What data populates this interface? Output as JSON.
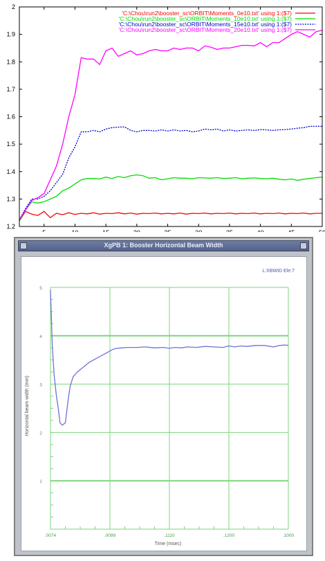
{
  "chart_data": [
    {
      "type": "line",
      "xlim": [
        1,
        50
      ],
      "ylim": [
        1.2,
        2.0
      ],
      "x_ticks": [
        5,
        10,
        15,
        20,
        25,
        30,
        35,
        40,
        45,
        50
      ],
      "y_ticks": [
        1.2,
        1.3,
        1.4,
        1.5,
        1.6,
        1.7,
        1.8,
        1.9,
        2.0
      ],
      "x_tick_labels": [
        "5",
        "10",
        "15",
        "20",
        "25",
        "30",
        "35",
        "40",
        "45",
        "50"
      ],
      "y_tick_labels": [
        "1.2",
        "1.3",
        "1.4",
        "1.5",
        "1.6",
        "1.7",
        "1.8",
        "1.9",
        "2"
      ],
      "legend_position": "top-right",
      "grid": false,
      "series": [
        {
          "name": "'C:\\Chou\\run2\\booster_sc\\ORBIT\\Moments_0e10.txt' using 1:($7)",
          "color": "#ff0000",
          "style": "solid",
          "x": [
            1,
            2,
            3,
            4,
            5,
            6,
            7,
            8,
            9,
            10,
            11,
            12,
            13,
            14,
            15,
            16,
            17,
            18,
            19,
            20,
            21,
            22,
            23,
            24,
            25,
            26,
            27,
            28,
            29,
            30,
            31,
            32,
            33,
            34,
            35,
            36,
            37,
            38,
            39,
            40,
            41,
            42,
            43,
            44,
            45,
            46,
            47,
            48,
            49,
            50
          ],
          "y": [
            1.22,
            1.255,
            1.245,
            1.24,
            1.255,
            1.232,
            1.248,
            1.243,
            1.25,
            1.244,
            1.248,
            1.246,
            1.25,
            1.245,
            1.248,
            1.247,
            1.25,
            1.246,
            1.249,
            1.245,
            1.248,
            1.247,
            1.249,
            1.246,
            1.248,
            1.246,
            1.249,
            1.245,
            1.248,
            1.247,
            1.249,
            1.246,
            1.248,
            1.247,
            1.249,
            1.246,
            1.248,
            1.247,
            1.249,
            1.246,
            1.248,
            1.247,
            1.249,
            1.246,
            1.248,
            1.247,
            1.249,
            1.246,
            1.248,
            1.248
          ]
        },
        {
          "name": "'C:\\Chou\\run2\\booster_sc\\ORBIT\\Moments_10e10.txt' using 1:($7)",
          "color": "#00dd00",
          "style": "solid",
          "x": [
            1,
            2,
            3,
            4,
            5,
            6,
            7,
            8,
            9,
            10,
            11,
            12,
            13,
            14,
            15,
            16,
            17,
            18,
            19,
            20,
            21,
            22,
            23,
            24,
            25,
            26,
            27,
            28,
            29,
            30,
            31,
            32,
            33,
            34,
            35,
            36,
            37,
            38,
            39,
            40,
            41,
            42,
            43,
            44,
            45,
            46,
            47,
            48,
            49,
            50
          ],
          "y": [
            1.22,
            1.26,
            1.29,
            1.285,
            1.29,
            1.3,
            1.31,
            1.33,
            1.34,
            1.355,
            1.37,
            1.375,
            1.375,
            1.373,
            1.38,
            1.375,
            1.382,
            1.378,
            1.385,
            1.388,
            1.385,
            1.376,
            1.378,
            1.37,
            1.374,
            1.378,
            1.376,
            1.376,
            1.374,
            1.378,
            1.377,
            1.376,
            1.378,
            1.375,
            1.376,
            1.378,
            1.374,
            1.376,
            1.377,
            1.375,
            1.374,
            1.376,
            1.372,
            1.37,
            1.373,
            1.368,
            1.372,
            1.375,
            1.378,
            1.38
          ]
        },
        {
          "name": "'C:\\Chou\\run2\\booster_sc\\ORBIT\\Moments_15e10.txt' using 1:($7)",
          "color": "#0000cc",
          "style": "dotted",
          "x": [
            1,
            2,
            3,
            4,
            5,
            6,
            7,
            8,
            9,
            10,
            11,
            12,
            13,
            14,
            15,
            16,
            17,
            18,
            19,
            20,
            21,
            22,
            23,
            24,
            25,
            26,
            27,
            28,
            29,
            30,
            31,
            32,
            33,
            34,
            35,
            36,
            37,
            38,
            39,
            40,
            41,
            42,
            43,
            44,
            45,
            46,
            47,
            48,
            49,
            50
          ],
          "y": [
            1.225,
            1.265,
            1.3,
            1.3,
            1.31,
            1.33,
            1.36,
            1.39,
            1.45,
            1.49,
            1.545,
            1.545,
            1.55,
            1.545,
            1.555,
            1.56,
            1.562,
            1.563,
            1.55,
            1.545,
            1.55,
            1.55,
            1.548,
            1.552,
            1.548,
            1.552,
            1.548,
            1.55,
            1.545,
            1.548,
            1.555,
            1.552,
            1.555,
            1.548,
            1.552,
            1.548,
            1.55,
            1.552,
            1.55,
            1.553,
            1.552,
            1.55,
            1.552,
            1.553,
            1.555,
            1.558,
            1.56,
            1.565,
            1.565,
            1.565
          ]
        },
        {
          "name": "'C:\\Chou\\run2\\booster_sc\\ORBIT\\Moments_20e10.txt' using 1:($7)",
          "color": "#ff00ff",
          "style": "solid",
          "x": [
            1,
            2,
            3,
            4,
            5,
            6,
            7,
            8,
            9,
            10,
            11,
            12,
            13,
            14,
            15,
            16,
            17,
            18,
            19,
            20,
            21,
            22,
            23,
            24,
            25,
            26,
            27,
            28,
            29,
            30,
            31,
            32,
            33,
            34,
            35,
            36,
            37,
            38,
            39,
            40,
            41,
            42,
            43,
            44,
            45,
            46,
            47,
            48,
            49,
            50
          ],
          "y": [
            1.225,
            1.26,
            1.295,
            1.305,
            1.32,
            1.37,
            1.42,
            1.5,
            1.6,
            1.68,
            1.815,
            1.81,
            1.81,
            1.79,
            1.84,
            1.85,
            1.82,
            1.83,
            1.84,
            1.825,
            1.83,
            1.84,
            1.845,
            1.84,
            1.84,
            1.85,
            1.845,
            1.85,
            1.85,
            1.84,
            1.858,
            1.853,
            1.845,
            1.85,
            1.85,
            1.855,
            1.86,
            1.86,
            1.858,
            1.87,
            1.855,
            1.87,
            1.87,
            1.885,
            1.9,
            1.91,
            1.9,
            1.89,
            1.91,
            1.915
          ]
        }
      ]
    },
    {
      "type": "line",
      "window_title": "XgPB 1: Booster Horizontal Beam Width",
      "xlabel": "Time (msec)",
      "ylabel": "Horizontal beam width (mm)",
      "legend_label": "L:XBWID Ele:7",
      "xlim": [
        0,
        4
      ],
      "ylim": [
        0,
        5
      ],
      "x_tick_labels": [
        ".0074",
        ".0099",
        ".1110",
        ".1200",
        ".1000"
      ],
      "y_tick_labels": [
        "5",
        "4",
        "3",
        "2",
        "1"
      ],
      "grid": true,
      "grid_color": "#7cd67c",
      "series": [
        {
          "name": "L:XBWID Ele:7",
          "color": "#7070d8",
          "x": [
            0.0,
            0.03,
            0.06,
            0.1,
            0.13,
            0.16,
            0.2,
            0.25,
            0.3,
            0.33,
            0.38,
            0.45,
            0.55,
            0.65,
            0.8,
            0.95,
            1.05,
            1.12,
            1.2,
            1.3,
            1.45,
            1.6,
            1.75,
            1.9,
            2.0,
            2.1,
            2.2,
            2.3,
            2.45,
            2.6,
            2.75,
            2.9,
            3.0,
            3.1,
            3.2,
            3.3,
            3.45,
            3.6,
            3.75,
            3.85,
            3.95,
            4.0
          ],
          "y": [
            4.95,
            3.8,
            3.2,
            2.75,
            2.5,
            2.2,
            2.15,
            2.2,
            2.7,
            2.95,
            3.15,
            3.25,
            3.35,
            3.45,
            3.55,
            3.65,
            3.72,
            3.74,
            3.75,
            3.76,
            3.76,
            3.77,
            3.75,
            3.76,
            3.74,
            3.76,
            3.75,
            3.77,
            3.76,
            3.78,
            3.77,
            3.76,
            3.79,
            3.77,
            3.79,
            3.78,
            3.8,
            3.8,
            3.77,
            3.8,
            3.81,
            3.8
          ]
        }
      ]
    }
  ]
}
